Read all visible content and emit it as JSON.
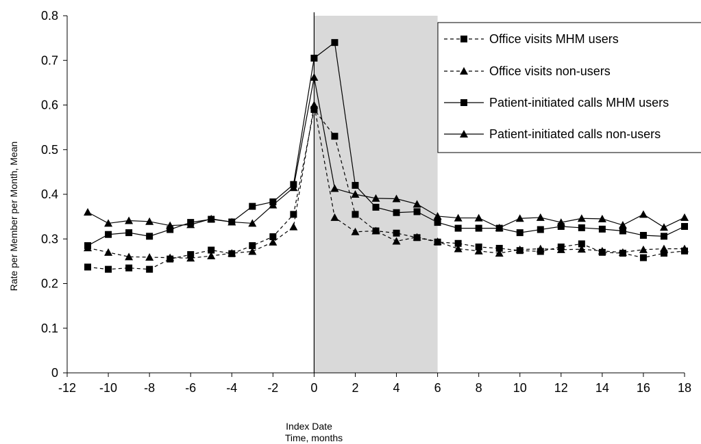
{
  "chart_data": {
    "type": "line",
    "title": "",
    "xlabel_line1": "Index Date",
    "xlabel_line2": "Time, months",
    "ylabel": "Rate per Member per Month, Mean",
    "xlim": [
      -12,
      18
    ],
    "ylim": [
      0,
      0.8
    ],
    "x_ticks": [
      -12,
      -10,
      -8,
      -6,
      -4,
      -2,
      0,
      2,
      4,
      6,
      8,
      10,
      12,
      14,
      16,
      18
    ],
    "y_ticks": [
      0,
      0.1,
      0.2,
      0.3,
      0.4,
      0.5,
      0.6,
      0.7,
      0.8
    ],
    "y_tick_labels": [
      "0",
      "0.1",
      "0.2",
      "0.3",
      "0.4",
      "0.5",
      "0.6",
      "0.7",
      "0.8"
    ],
    "shaded_region": [
      0,
      6
    ],
    "index_line_x": 0,
    "grid": false,
    "legend_position": "top-right",
    "x": [
      -11,
      -10,
      -9,
      -8,
      -7,
      -6,
      -5,
      -4,
      -3,
      -2,
      -1,
      0,
      1,
      2,
      3,
      4,
      5,
      6,
      7,
      8,
      9,
      10,
      11,
      12,
      13,
      14,
      15,
      16,
      17,
      18
    ],
    "series": [
      {
        "name": "Office visits MHM users",
        "marker": "square",
        "dash": "dashed",
        "values": [
          0.237,
          0.232,
          0.235,
          0.232,
          0.255,
          0.265,
          0.275,
          0.267,
          0.285,
          0.305,
          0.355,
          0.59,
          0.53,
          0.355,
          0.318,
          0.313,
          0.303,
          0.293,
          0.29,
          0.282,
          0.279,
          0.274,
          0.272,
          0.282,
          0.289,
          0.27,
          0.268,
          0.258,
          0.268,
          0.273
        ]
      },
      {
        "name": "Office visits non-users",
        "marker": "triangle",
        "dash": "dashed",
        "values": [
          0.28,
          0.27,
          0.26,
          0.259,
          0.258,
          0.257,
          0.262,
          0.268,
          0.272,
          0.293,
          0.327,
          0.6,
          0.348,
          0.316,
          0.318,
          0.295,
          0.304,
          0.294,
          0.278,
          0.273,
          0.268,
          0.276,
          0.278,
          0.276,
          0.277,
          0.273,
          0.27,
          0.276,
          0.278,
          0.278
        ]
      },
      {
        "name": "Patient-initiated calls MHM users",
        "marker": "square",
        "dash": "solid",
        "values": [
          0.285,
          0.31,
          0.314,
          0.306,
          0.321,
          0.337,
          0.344,
          0.338,
          0.373,
          0.383,
          0.422,
          0.705,
          0.74,
          0.42,
          0.371,
          0.359,
          0.361,
          0.337,
          0.324,
          0.324,
          0.324,
          0.314,
          0.321,
          0.328,
          0.325,
          0.322,
          0.318,
          0.308,
          0.306,
          0.328
        ]
      },
      {
        "name": "Patient-initiated calls non-users",
        "marker": "triangle",
        "dash": "solid",
        "values": [
          0.36,
          0.335,
          0.341,
          0.339,
          0.33,
          0.332,
          0.345,
          0.338,
          0.335,
          0.376,
          0.415,
          0.662,
          0.413,
          0.4,
          0.391,
          0.39,
          0.378,
          0.351,
          0.347,
          0.347,
          0.325,
          0.346,
          0.348,
          0.337,
          0.346,
          0.345,
          0.331,
          0.355,
          0.326,
          0.348
        ]
      }
    ]
  }
}
